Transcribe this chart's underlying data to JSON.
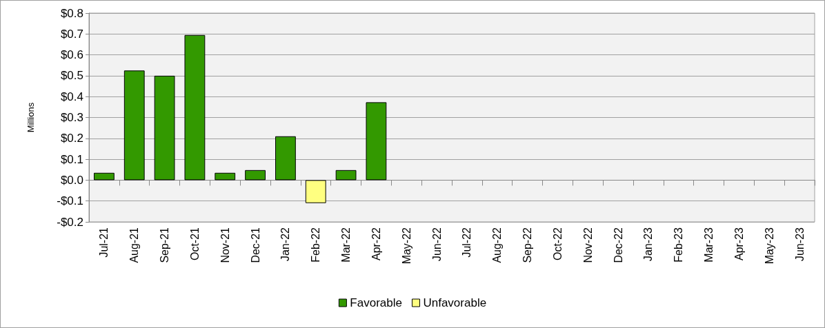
{
  "chart_data": {
    "type": "bar",
    "ylabel": "Millions",
    "categories": [
      "Jul-21",
      "Aug-21",
      "Sep-21",
      "Oct-21",
      "Nov-21",
      "Dec-21",
      "Jan-22",
      "Feb-22",
      "Mar-22",
      "Apr-22",
      "May-22",
      "Jun-22",
      "Jul-22",
      "Aug-22",
      "Sep-22",
      "Oct-22",
      "Nov-22",
      "Dec-22",
      "Jan-23",
      "Feb-23",
      "Mar-23",
      "Apr-23",
      "May-23",
      "Jun-23"
    ],
    "series": [
      {
        "name": "Favorable",
        "color": "#339900",
        "values": [
          0.035,
          0.525,
          0.5,
          0.695,
          0.035,
          0.048,
          0.21,
          null,
          0.048,
          0.373,
          null,
          null,
          null,
          null,
          null,
          null,
          null,
          null,
          null,
          null,
          null,
          null,
          null,
          null
        ]
      },
      {
        "name": "Unfavorable",
        "color": "#ffff80",
        "values": [
          null,
          null,
          null,
          null,
          null,
          null,
          null,
          -0.11,
          null,
          null,
          null,
          null,
          null,
          null,
          null,
          null,
          null,
          null,
          null,
          null,
          null,
          null,
          null,
          null
        ]
      }
    ],
    "stacked": true,
    "ylim": [
      -0.2,
      0.8
    ],
    "yticks": [
      {
        "value": -0.2,
        "label": "-$0.2"
      },
      {
        "value": -0.1,
        "label": "-$0.1"
      },
      {
        "value": 0,
        "label": "$0.0"
      },
      {
        "value": 0.1,
        "label": "$0.1"
      },
      {
        "value": 0.2,
        "label": "$0.2"
      },
      {
        "value": 0.3,
        "label": "$0.3"
      },
      {
        "value": 0.4,
        "label": "$0.4"
      },
      {
        "value": 0.5,
        "label": "$0.5"
      },
      {
        "value": 0.6,
        "label": "$0.6"
      },
      {
        "value": 0.7,
        "label": "$0.7"
      },
      {
        "value": 0.8,
        "label": "$0.8"
      }
    ],
    "grid": "y",
    "legend": "bottom"
  }
}
